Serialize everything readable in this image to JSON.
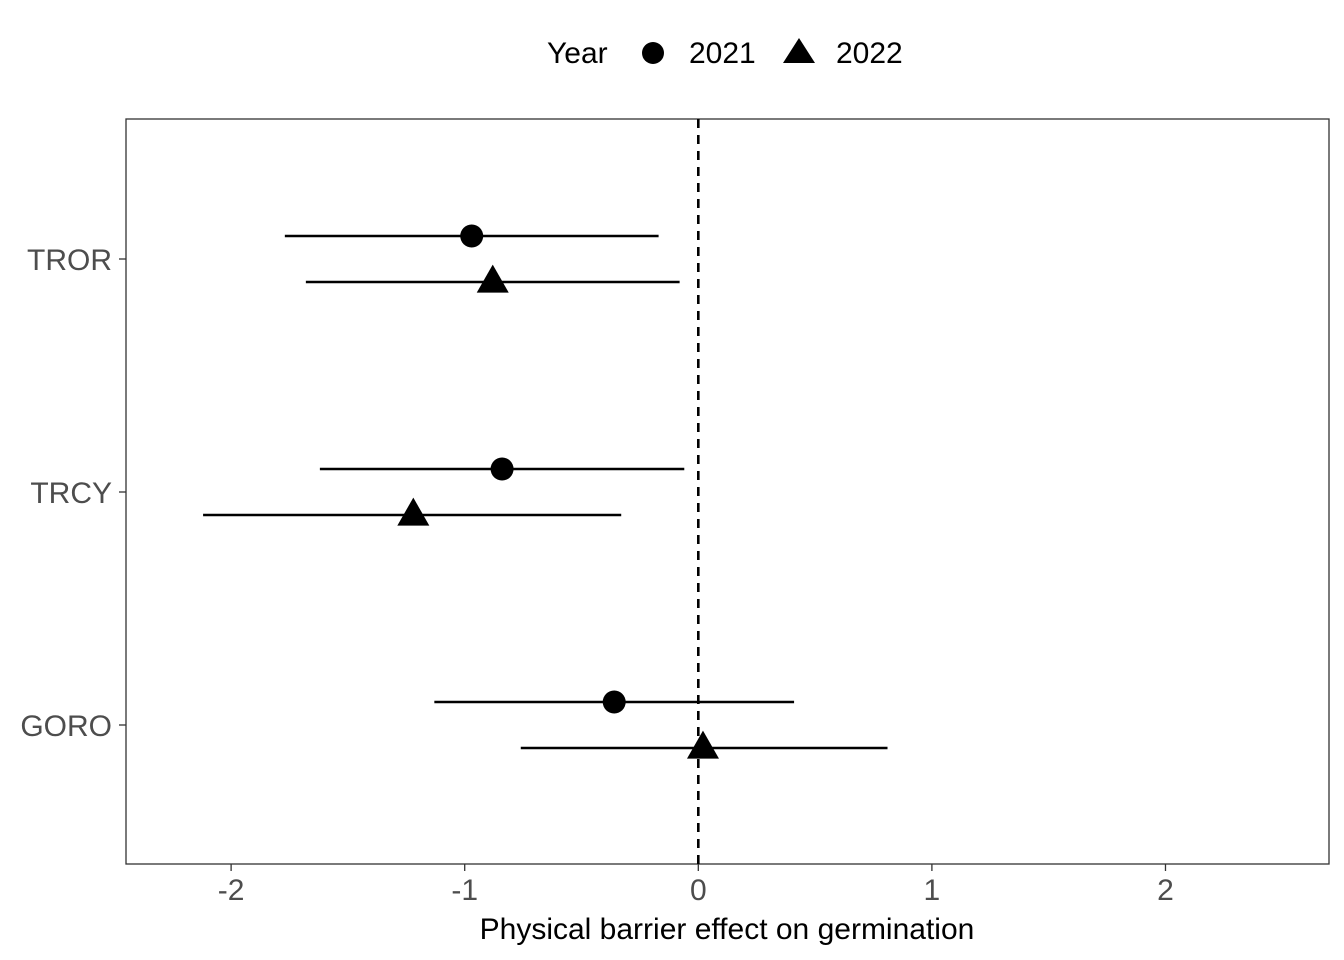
{
  "chart_data": {
    "type": "scatter",
    "subtype": "forest-plot",
    "title": "",
    "xlabel": "Physical barrier effect on germination",
    "ylabel": "",
    "xlim": [
      -2.45,
      2.7
    ],
    "x_ticks": [
      -2,
      -1,
      0,
      1,
      2
    ],
    "x_tick_labels": [
      "-2",
      "-1",
      "0",
      "1",
      "2"
    ],
    "categories": [
      "TROR",
      "TRCY",
      "GORO"
    ],
    "reference_line": 0,
    "grid": false,
    "legend": {
      "title": "Year",
      "position": "top",
      "entries": [
        {
          "label": "2021",
          "shape": "circle"
        },
        {
          "label": "2022",
          "shape": "triangle"
        }
      ]
    },
    "series": [
      {
        "name": "2021",
        "shape": "circle",
        "points": [
          {
            "category": "TROR",
            "estimate": -0.97,
            "lower": -1.77,
            "upper": -0.17
          },
          {
            "category": "TRCY",
            "estimate": -0.84,
            "lower": -1.62,
            "upper": -0.06
          },
          {
            "category": "GORO",
            "estimate": -0.36,
            "lower": -1.13,
            "upper": 0.41
          }
        ]
      },
      {
        "name": "2022",
        "shape": "triangle",
        "points": [
          {
            "category": "TROR",
            "estimate": -0.88,
            "lower": -1.68,
            "upper": -0.08
          },
          {
            "category": "TRCY",
            "estimate": -1.22,
            "lower": -2.12,
            "upper": -0.33
          },
          {
            "category": "GORO",
            "estimate": 0.02,
            "lower": -0.76,
            "upper": 0.81
          }
        ]
      }
    ],
    "colors": {
      "marks": "#000000",
      "axis_text": "#4d4d4d",
      "frame": "#333333"
    }
  }
}
